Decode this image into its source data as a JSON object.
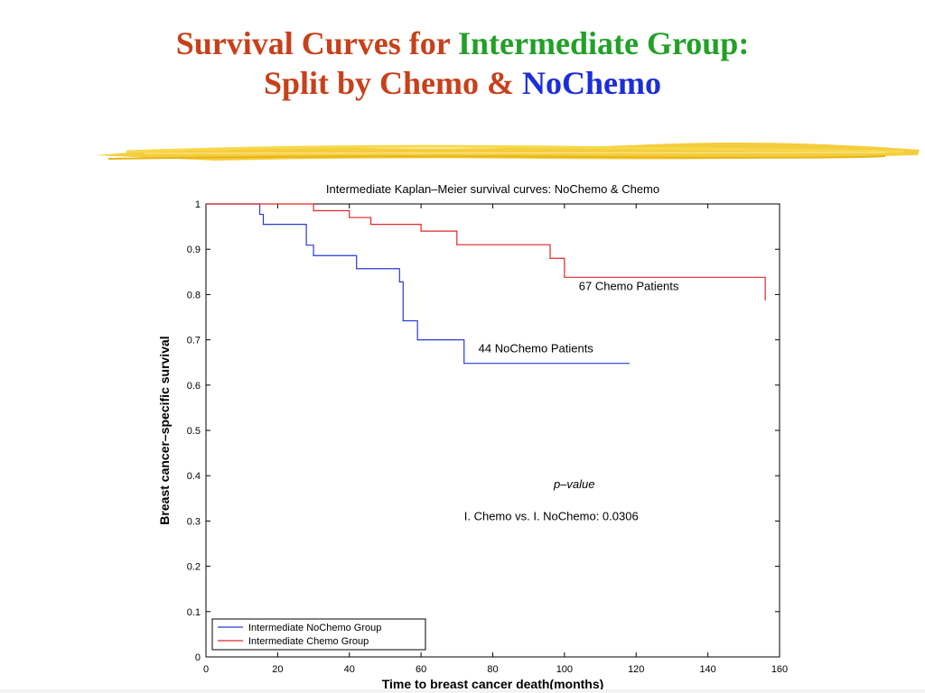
{
  "slide": {
    "title_line1_part1": "Survival Curves for ",
    "title_line1_part2": "Intermediate Group:",
    "title_line2_part1": "Split by Chemo & ",
    "title_line2_part2": "NoChemo",
    "colors": {
      "title_primary": "#c8401a",
      "title_green": "#22a028",
      "title_blue": "#1c2ed8",
      "brush": "#f2c41c"
    }
  },
  "chart_data": {
    "type": "line",
    "title": "Intermediate Kaplan–Meier survival curves: NoChemo & Chemo",
    "xlabel": "Time to breast cancer death(months)",
    "ylabel": "Breast cancer–specific survival",
    "xlim": [
      0,
      160
    ],
    "ylim": [
      0,
      1
    ],
    "xticks": [
      0,
      20,
      40,
      60,
      80,
      100,
      120,
      140,
      160
    ],
    "yticks": [
      0,
      0.1,
      0.2,
      0.3,
      0.4,
      0.5,
      0.6,
      0.7,
      0.8,
      0.9,
      1
    ],
    "grid": false,
    "legend_position": "bottom-left",
    "step": true,
    "series": [
      {
        "name": "Intermediate NoChemo Group",
        "color": "#2a3ad8",
        "x": [
          0,
          15,
          16,
          17,
          18,
          28,
          30,
          41,
          42,
          53,
          54,
          55,
          59,
          72,
          118
        ],
        "y": [
          1,
          0.977,
          0.955,
          0.955,
          0.955,
          0.909,
          0.886,
          0.886,
          0.857,
          0.857,
          0.828,
          0.742,
          0.7,
          0.648,
          0.648
        ]
      },
      {
        "name": "Intermediate Chemo Group",
        "color": "#e02828",
        "x": [
          0,
          30,
          40,
          46,
          60,
          70,
          96,
          100,
          156
        ],
        "y": [
          1,
          0.985,
          0.97,
          0.955,
          0.94,
          0.91,
          0.88,
          0.838,
          0.788
        ]
      }
    ],
    "annotations": [
      {
        "text": "67 Chemo Patients",
        "x": 104,
        "y": 0.81
      },
      {
        "text": "44 NoChemo Patients",
        "x": 76,
        "y": 0.672
      },
      {
        "text": "p–value",
        "x": 97,
        "y": 0.373,
        "italic": true
      },
      {
        "text": "I. Chemo vs. I. NoChemo: 0.0306",
        "x": 72,
        "y": 0.302
      }
    ]
  }
}
